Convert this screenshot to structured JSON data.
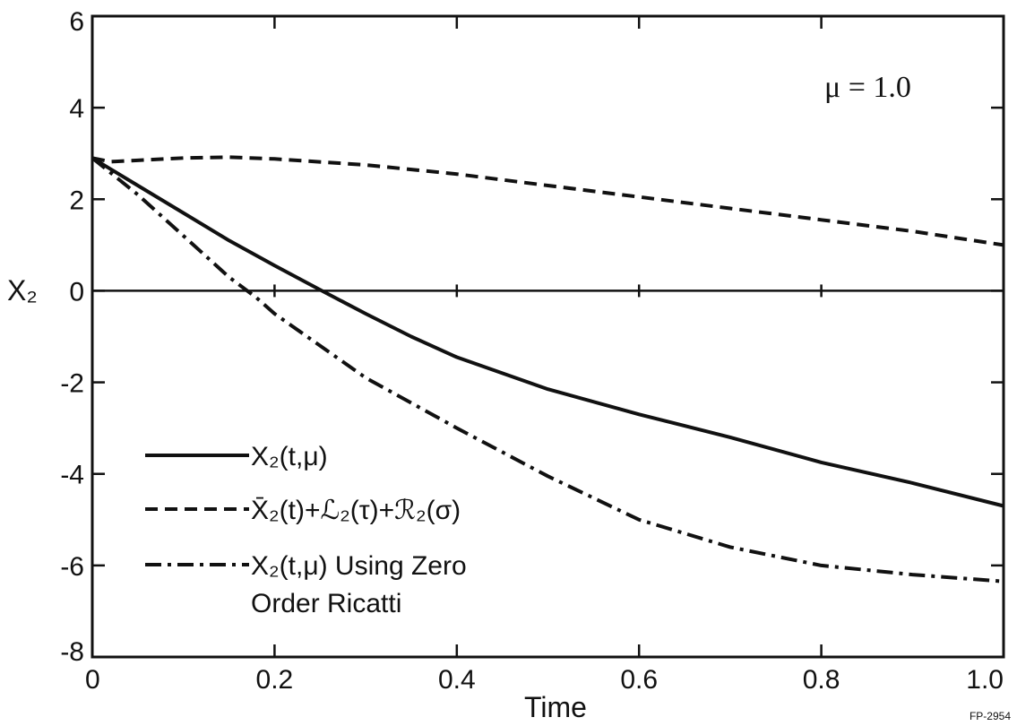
{
  "chart_data": {
    "type": "line",
    "xlabel": "Time",
    "ylabel": "X₂",
    "xlim": [
      0,
      1.0
    ],
    "ylim": [
      -8,
      6
    ],
    "xticks": [
      0,
      0.2,
      0.4,
      0.6,
      0.8,
      1.0
    ],
    "xtick_labels": [
      "0",
      "0.2",
      "0.4",
      "0.6",
      "0.8",
      "1.0"
    ],
    "yticks": [
      -8,
      -6,
      -4,
      -2,
      0,
      2,
      4,
      6
    ],
    "ytick_labels": [
      "-8",
      "-6",
      "-4",
      "-2",
      "0",
      "2",
      "4",
      "6"
    ],
    "grid": false,
    "annotation": "μ = 1.0",
    "figure_code": "FP-2954",
    "legend_position": "bottom-left",
    "series": [
      {
        "name": "X₂(t,μ)",
        "style": "solid",
        "x": [
          0,
          0.05,
          0.1,
          0.15,
          0.2,
          0.25,
          0.3,
          0.35,
          0.4,
          0.5,
          0.6,
          0.7,
          0.8,
          0.9,
          1.0
        ],
        "y": [
          2.9,
          2.3,
          1.7,
          1.1,
          0.55,
          0.02,
          -0.5,
          -1.0,
          -1.45,
          -2.15,
          -2.7,
          -3.2,
          -3.75,
          -4.2,
          -4.7
        ]
      },
      {
        "name": "X̄₂(t)+ℒ₂(τ)+ℛ₂(σ)",
        "style": "dashed",
        "x": [
          0,
          0.02,
          0.05,
          0.1,
          0.15,
          0.2,
          0.3,
          0.4,
          0.5,
          0.6,
          0.7,
          0.8,
          0.9,
          1.0
        ],
        "y": [
          2.9,
          2.82,
          2.85,
          2.9,
          2.92,
          2.88,
          2.75,
          2.55,
          2.3,
          2.05,
          1.8,
          1.55,
          1.3,
          1.0
        ]
      },
      {
        "name": "X₂(t,μ) Using Zero Order Ricatti",
        "style": "dash-dot",
        "x": [
          0,
          0.05,
          0.1,
          0.15,
          0.18,
          0.2,
          0.3,
          0.4,
          0.5,
          0.6,
          0.7,
          0.8,
          0.9,
          1.0
        ],
        "y": [
          2.9,
          2.1,
          1.2,
          0.3,
          -0.15,
          -0.5,
          -1.9,
          -3.0,
          -4.05,
          -5.0,
          -5.6,
          -6.0,
          -6.2,
          -6.35
        ]
      }
    ],
    "legend_lines": [
      [
        "X₂(t,μ)"
      ],
      [
        "X̄₂(t)+ℒ₂(τ)+ℛ₂(σ)"
      ],
      [
        "X₂(t,μ) Using Zero",
        "Order Ricatti"
      ]
    ]
  }
}
